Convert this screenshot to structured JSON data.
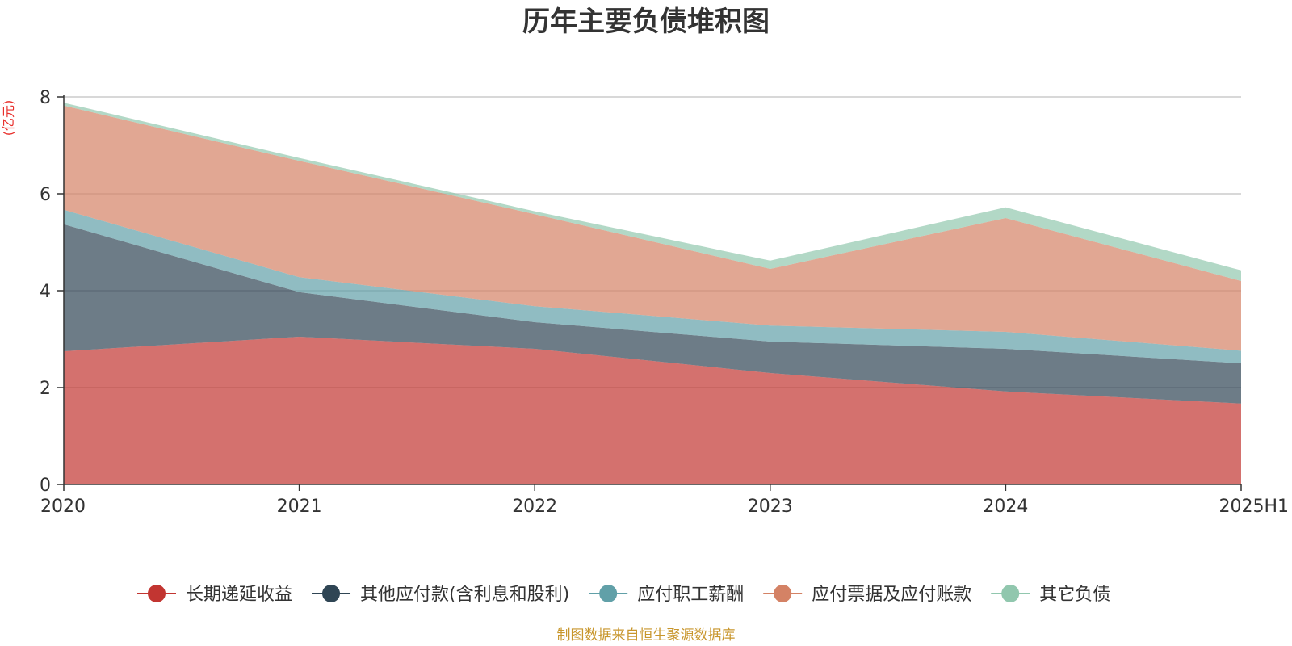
{
  "chart_data": {
    "type": "area",
    "stacked": true,
    "title": "历年主要负债堆积图",
    "unit_label": "(亿元)",
    "xlabel": "",
    "ylabel": "",
    "categories": [
      "2020",
      "2021",
      "2022",
      "2023",
      "2024",
      "2025H1"
    ],
    "ylim": [
      0,
      8
    ],
    "yticks": [
      "0",
      "2",
      "4",
      "6",
      "8"
    ],
    "grid": true,
    "legend_position": "bottom",
    "series": [
      {
        "name": "长期递延收益",
        "color": "#c23531",
        "values": [
          2.75,
          3.05,
          2.8,
          2.3,
          1.92,
          1.67
        ]
      },
      {
        "name": "其他应付款(含利息和股利)",
        "color": "#2f4554",
        "values": [
          2.62,
          0.92,
          0.55,
          0.65,
          0.88,
          0.83
        ]
      },
      {
        "name": "应付职工薪酬",
        "color": "#61a0a8",
        "values": [
          0.3,
          0.31,
          0.33,
          0.33,
          0.35,
          0.26
        ]
      },
      {
        "name": "应付票据及应付账款",
        "color": "#d48265",
        "values": [
          2.15,
          2.4,
          1.9,
          1.17,
          2.35,
          1.44
        ]
      },
      {
        "name": "其它负债",
        "color": "#91c7ae",
        "values": [
          0.06,
          0.06,
          0.06,
          0.17,
          0.22,
          0.22
        ]
      }
    ],
    "source": "制图数据来自恒生聚源数据库"
  }
}
